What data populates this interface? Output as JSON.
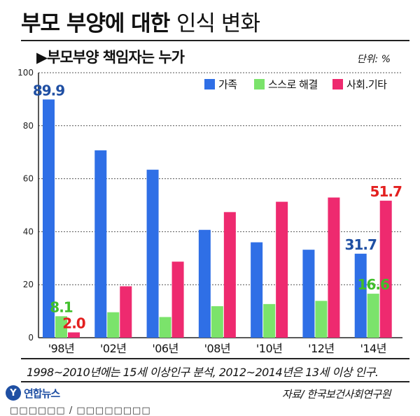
{
  "title_bold": "부모 부양에 대한",
  "title_light": "인식 변화",
  "subtitle": "▶부모부양 책임자는 누가",
  "unit": "단위: %",
  "note": "1998~2010년에는 15세 이상인구 분석, 2012~2014년은 13세 이상 인구.",
  "logo": {
    "mark": "Y",
    "text": "연합뉴스"
  },
  "source": "자료/ 한국보건사회연구원",
  "footer_partial": "□□□□□□ / □□□□□□□□",
  "colors": {
    "family": "#2f6fe6",
    "self": "#7be36b",
    "society": "#ee2a6f",
    "label_blue": "#1f4fa3",
    "label_green": "#3fbf2a",
    "label_red": "#e3201f"
  },
  "chart_data": {
    "type": "bar",
    "categories": [
      "'98년",
      "'02년",
      "'06년",
      "'08년",
      "'10년",
      "'12년",
      "'14년"
    ],
    "series": [
      {
        "name": "가족",
        "values": [
          89.9,
          70.7,
          63.4,
          40.7,
          36.0,
          33.2,
          31.7
        ]
      },
      {
        "name": "스스로 해결",
        "values": [
          8.1,
          9.6,
          7.8,
          11.9,
          12.7,
          13.9,
          16.6
        ]
      },
      {
        "name": "사회.기타",
        "values": [
          2.0,
          19.4,
          28.7,
          47.4,
          51.3,
          52.9,
          51.7
        ]
      }
    ],
    "data_labels": [
      {
        "category": 0,
        "series": 0,
        "text": "89.9"
      },
      {
        "category": 0,
        "series": 1,
        "text": "8.1"
      },
      {
        "category": 0,
        "series": 2,
        "text": "2.0"
      },
      {
        "category": 6,
        "series": 0,
        "text": "31.7"
      },
      {
        "category": 6,
        "series": 1,
        "text": "16.6"
      },
      {
        "category": 6,
        "series": 2,
        "text": "51.7"
      }
    ],
    "yticks": [
      0,
      20,
      40,
      60,
      80,
      100
    ],
    "ylim": [
      0,
      100
    ],
    "grid": true,
    "legend_position": "top-right"
  }
}
